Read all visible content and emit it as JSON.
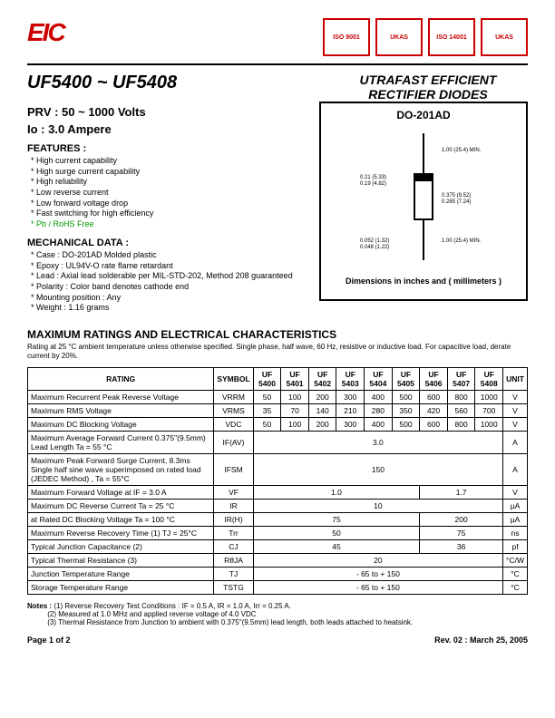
{
  "logo": "EIC",
  "badges": [
    "ISO 9001",
    "UKAS",
    "ISO 14001",
    "UKAS"
  ],
  "part_range": "UF5400 ~ UF5408",
  "product_title_1": "UTRAFAST EFFICIENT",
  "product_title_2": "RECTIFIER DIODES",
  "prv": "PRV : 50 ~ 1000 Volts",
  "io": "Io : 3.0 Ampere",
  "features_head": "FEATURES :",
  "features": [
    "High current capability",
    "High surge current capability",
    "High reliability",
    "Low reverse current",
    "Low forward voltage drop",
    "Fast switching for high efficiency"
  ],
  "rohs": "Pb / RoHS Free",
  "mech_head": "MECHANICAL DATA :",
  "mechanical": [
    "Case : DO-201AD  Molded plastic",
    "Epoxy : UL94V-O rate flame retardant",
    "Lead : Axial lead solderable per MIL-STD-202, Method 208 guaranteed",
    "Polarity : Color band denotes cathode end",
    "Mounting  position : Any",
    "Weight : 1.16 grams"
  ],
  "diagram": {
    "package": "DO-201AD",
    "caption": "Dimensions in inches and ( millimeters )",
    "dims": {
      "lead_len_top": "1.00 (25.4) MIN.",
      "body_dia_top": "0.21 (5.33)",
      "body_dia_bot": "0.19 (4.82)",
      "body_len_top": "0.375 (9.52)",
      "body_len_bot": "0.285 (7.24)",
      "lead_len_bot": "1.00 (25.4) MIN.",
      "lead_dia_top": "0.052 (1.32)",
      "lead_dia_bot": "0.048 (1.22)"
    }
  },
  "ratings_title": "MAXIMUM RATINGS AND ELECTRICAL CHARACTERISTICS",
  "ratings_note": "Rating at 25 °C ambient temperature unless otherwise specified.\nSingle phase, half wave, 60 Hz, resistive or inductive load.\nFor capacitive load, derate current by 20%.",
  "table": {
    "header_rating": "RATING",
    "header_symbol": "SYMBOL",
    "header_unit": "UNIT",
    "parts": [
      "UF 5400",
      "UF 5401",
      "UF 5402",
      "UF 5403",
      "UF 5404",
      "UF 5405",
      "UF 5406",
      "UF 5407",
      "UF 5408"
    ],
    "rows": [
      {
        "label": "Maximum Recurrent Peak Reverse Voltage",
        "symbol": "VRRM",
        "vals": [
          "50",
          "100",
          "200",
          "300",
          "400",
          "500",
          "600",
          "800",
          "1000"
        ],
        "unit": "V"
      },
      {
        "label": "Maximum RMS Voltage",
        "symbol": "VRMS",
        "vals": [
          "35",
          "70",
          "140",
          "210",
          "280",
          "350",
          "420",
          "560",
          "700"
        ],
        "unit": "V"
      },
      {
        "label": "Maximum DC Blocking Voltage",
        "symbol": "VDC",
        "vals": [
          "50",
          "100",
          "200",
          "300",
          "400",
          "500",
          "600",
          "800",
          "1000"
        ],
        "unit": "V"
      },
      {
        "label": "Maximum Average Forward Current 0.375\"(9.5mm) Lead Length      Ta = 55 °C",
        "symbol": "IF(AV)",
        "span": "3.0",
        "unit": "A"
      },
      {
        "label": "Maximum Peak Forward Surge Current, 8.3ms Single half sine wave superimposed on rated load (JEDEC Method) , Ta = 55°C",
        "symbol": "IFSM",
        "span": "150",
        "unit": "A"
      },
      {
        "label": "Maximum Forward Voltage at IF = 3.0 A",
        "symbol": "VF",
        "split": [
          "1.0",
          "1.7"
        ],
        "unit": "V"
      },
      {
        "label": "Maximum DC Reverse Current      Ta = 25 °C",
        "symbol": "IR",
        "span": "10",
        "unit": "µA"
      },
      {
        "label": "at Rated DC Blocking Voltage      Ta = 100 °C",
        "symbol": "IR(H)",
        "split": [
          "75",
          "200"
        ],
        "unit": "µA"
      },
      {
        "label": "Maximum Reverse Recovery Time (1) TJ = 25°C",
        "symbol": "Trr",
        "split": [
          "50",
          "75"
        ],
        "unit": "ns"
      },
      {
        "label": "Typical Junction Capacitance (2)",
        "symbol": "CJ",
        "split": [
          "45",
          "36"
        ],
        "unit": "pf"
      },
      {
        "label": "Typical Thermal Resistance (3)",
        "symbol": "RθJA",
        "span": "20",
        "unit": "°C/W"
      },
      {
        "label": "Junction Temperature Range",
        "symbol": "TJ",
        "span": "- 65 to + 150",
        "unit": "°C"
      },
      {
        "label": "Storage Temperature Range",
        "symbol": "TSTG",
        "span": "- 65 to + 150",
        "unit": "°C"
      }
    ]
  },
  "notes_label": "Notes :",
  "notes": [
    "(1)  Reverse Recovery Test Conditions : IF = 0.5 A, IR = 1.0 A, Irr = 0.25 A.",
    "(2)  Measured at 1.0 MHz and applied reverse voltage of 4.0 VDC",
    "(3)  Thermal Resistance from Junction to ambient with 0.375\"(9.5mm) lead length, both leads attached to heatsink."
  ],
  "footer_left": "Page 1 of 2",
  "footer_right": "Rev. 02 : March 25, 2005"
}
